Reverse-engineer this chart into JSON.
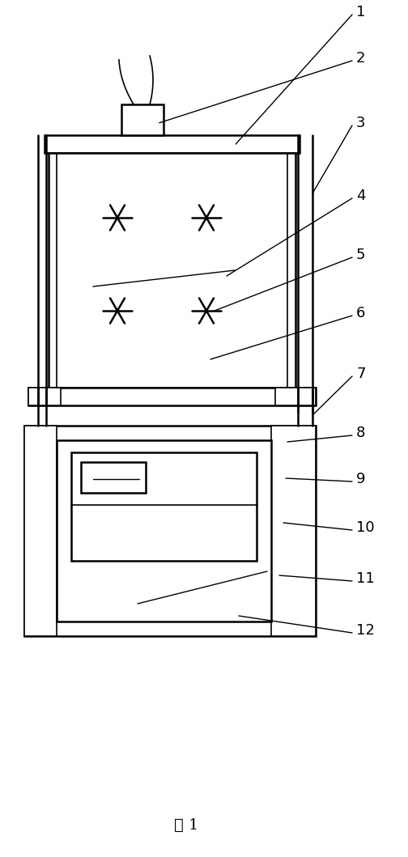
{
  "fig_width": 5.04,
  "fig_height": 10.59,
  "bg_color": "#ffffff",
  "line_color": "#000000",
  "title": "图 1"
}
